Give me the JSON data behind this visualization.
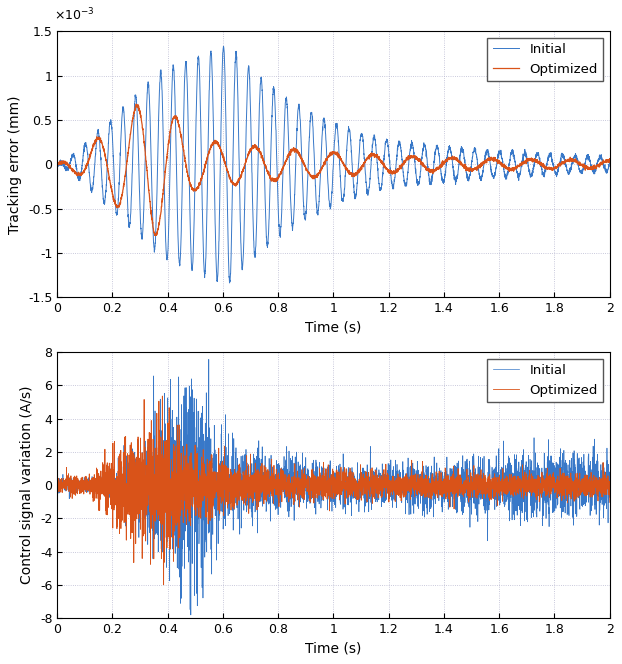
{
  "ylabel1": "Tracking error (mm)",
  "ylabel2": "Control signal variation (A/s)",
  "xlabel": "Time (s)",
  "xlim": [
    0,
    2
  ],
  "ylim1": [
    -0.0015,
    0.0015
  ],
  "ylim2": [
    -8,
    8
  ],
  "yticks1": [
    -0.0015,
    -0.001,
    -0.0005,
    0.0,
    0.0005,
    0.001,
    0.0015
  ],
  "yticks2": [
    -8,
    -6,
    -4,
    -2,
    0,
    2,
    4,
    6,
    8
  ],
  "xticks": [
    0,
    0.2,
    0.4,
    0.6,
    0.8,
    1.0,
    1.2,
    1.4,
    1.6,
    1.8,
    2.0
  ],
  "color_initial": "#3878c8",
  "color_optimized": "#d95319",
  "legend_labels": [
    "Initial",
    "Optimized"
  ],
  "grid_color": "#b8b8d0",
  "bg_color": "#ffffff",
  "dt": 0.0005,
  "T": 2.0
}
